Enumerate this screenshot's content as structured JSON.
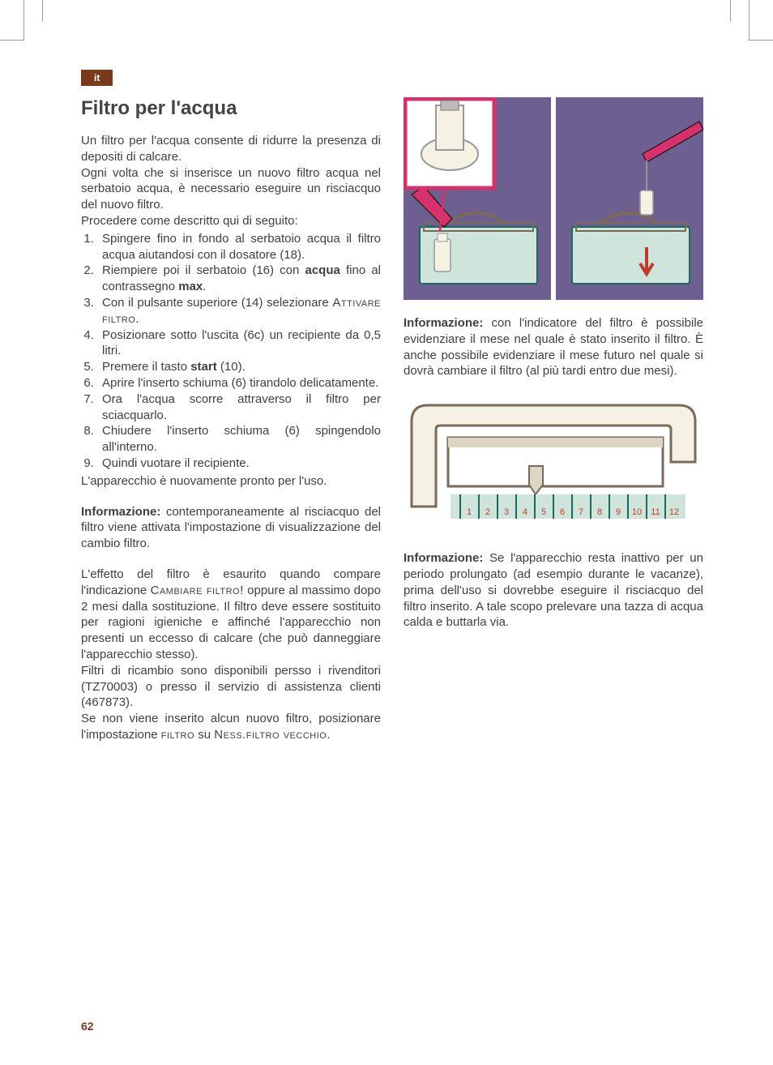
{
  "lang_tag": "it",
  "page_number": "62",
  "left": {
    "title": "Filtro per l'acqua",
    "intro": [
      "Un filtro per l'acqua consente di ridurre la presenza di depositi di calcare.",
      "Ogni volta che si inserisce un nuovo filtro acqua nel serbatoio acqua, è necessario eseguire un risciacquo del nuovo filtro.",
      "Procedere come descritto qui di seguito:"
    ],
    "steps": [
      "Spingere fino in fondo al serbatoio acqua il filtro acqua aiutandosi con il dosatore (18).",
      "Riempiere poi il serbatoio (16) con <b>acqua</b> fino al contrassegno <b>max</b>.",
      "Con il pulsante superiore (14) selezionare <span class=\"smallcaps\">Attivare filtro</span>.",
      "Posizionare sotto l'uscita (6c) un recipiente da 0,5 litri.",
      "Premere il tasto <b>start</b> (10).",
      "Aprire l'inserto schiuma (6) tirandolo delicatamente.",
      "Ora l'acqua scorre attraverso il filtro per sciacquarlo.",
      "Chiudere l'inserto schiuma (6) spingendolo all'interno.",
      "Quindi vuotare il recipiente."
    ],
    "after_steps": "L'apparecchio è nuovamente pronto per l'uso.",
    "info1_label": "Informazione:",
    "info1_text": " contemporaneamente al risciacquo del filtro viene attivata l'impostazione di visualizzazione del cambio filtro.",
    "para2": "L'effetto del filtro è esaurito quando compare l'indicazione <span class=\"smallcaps\">Cambiare filtro!</span> oppure al massimo dopo 2 mesi dalla sostituzione. Il filtro deve essere sostituito per ragioni igieniche e affinché l'apparecchio non presenti un eccesso di calcare (che può danneggiare l'apparecchio stesso).",
    "para3": "Filtri di ricambio sono disponibili persso i rivenditori (TZ70003) o presso il servizio di assistenza clienti (467873).",
    "para4": "Se non viene inserito alcun nuovo filtro, posizionare l'impostazione <span class=\"smallcaps\">filtro</span> su <span class=\"smallcaps\">Ness.filtro vecchio</span>."
  },
  "right": {
    "info1_label": "Informazione:",
    "info1_text": " con l'indicatore del filtro è possibile evidenziare il mese nel quale è stato inserito il filtro. È anche possibile evidenziare il mese futuro nel quale si dovrà cambiare il filtro (al più tardi entro due mesi).",
    "info2_label": "Informazione:",
    "info2_text": " Se l'apparecchio resta inattivo per un periodo prolungato (ad esempio durante le vacanze), prima dell'uso si dovrebbe eseguire il risciacquo del filtro inserito. A tale scopo prelevare una tazza di acqua calda e buttarla via."
  },
  "figures": {
    "fig1": {
      "bg": "#6d5f8f",
      "inset_border": "#d6316a",
      "machine_body": "#cfe5dc",
      "machine_outline": "#1a6a5a",
      "filter_body": "#f5f1e3",
      "hand": "#d6316a",
      "arrow": "#c0392b",
      "handle": "#7a6a5a"
    },
    "fig2": {
      "outline": "#7a6a5a",
      "scale_bg": "#cfe5dc",
      "scale_line": "#1a6a5a",
      "numbers": [
        "1",
        "2",
        "3",
        "4",
        "5",
        "6",
        "7",
        "8",
        "9",
        "10",
        "11",
        "12"
      ],
      "number_color": "#c0392b",
      "pointer": "#7a6a5a"
    }
  }
}
